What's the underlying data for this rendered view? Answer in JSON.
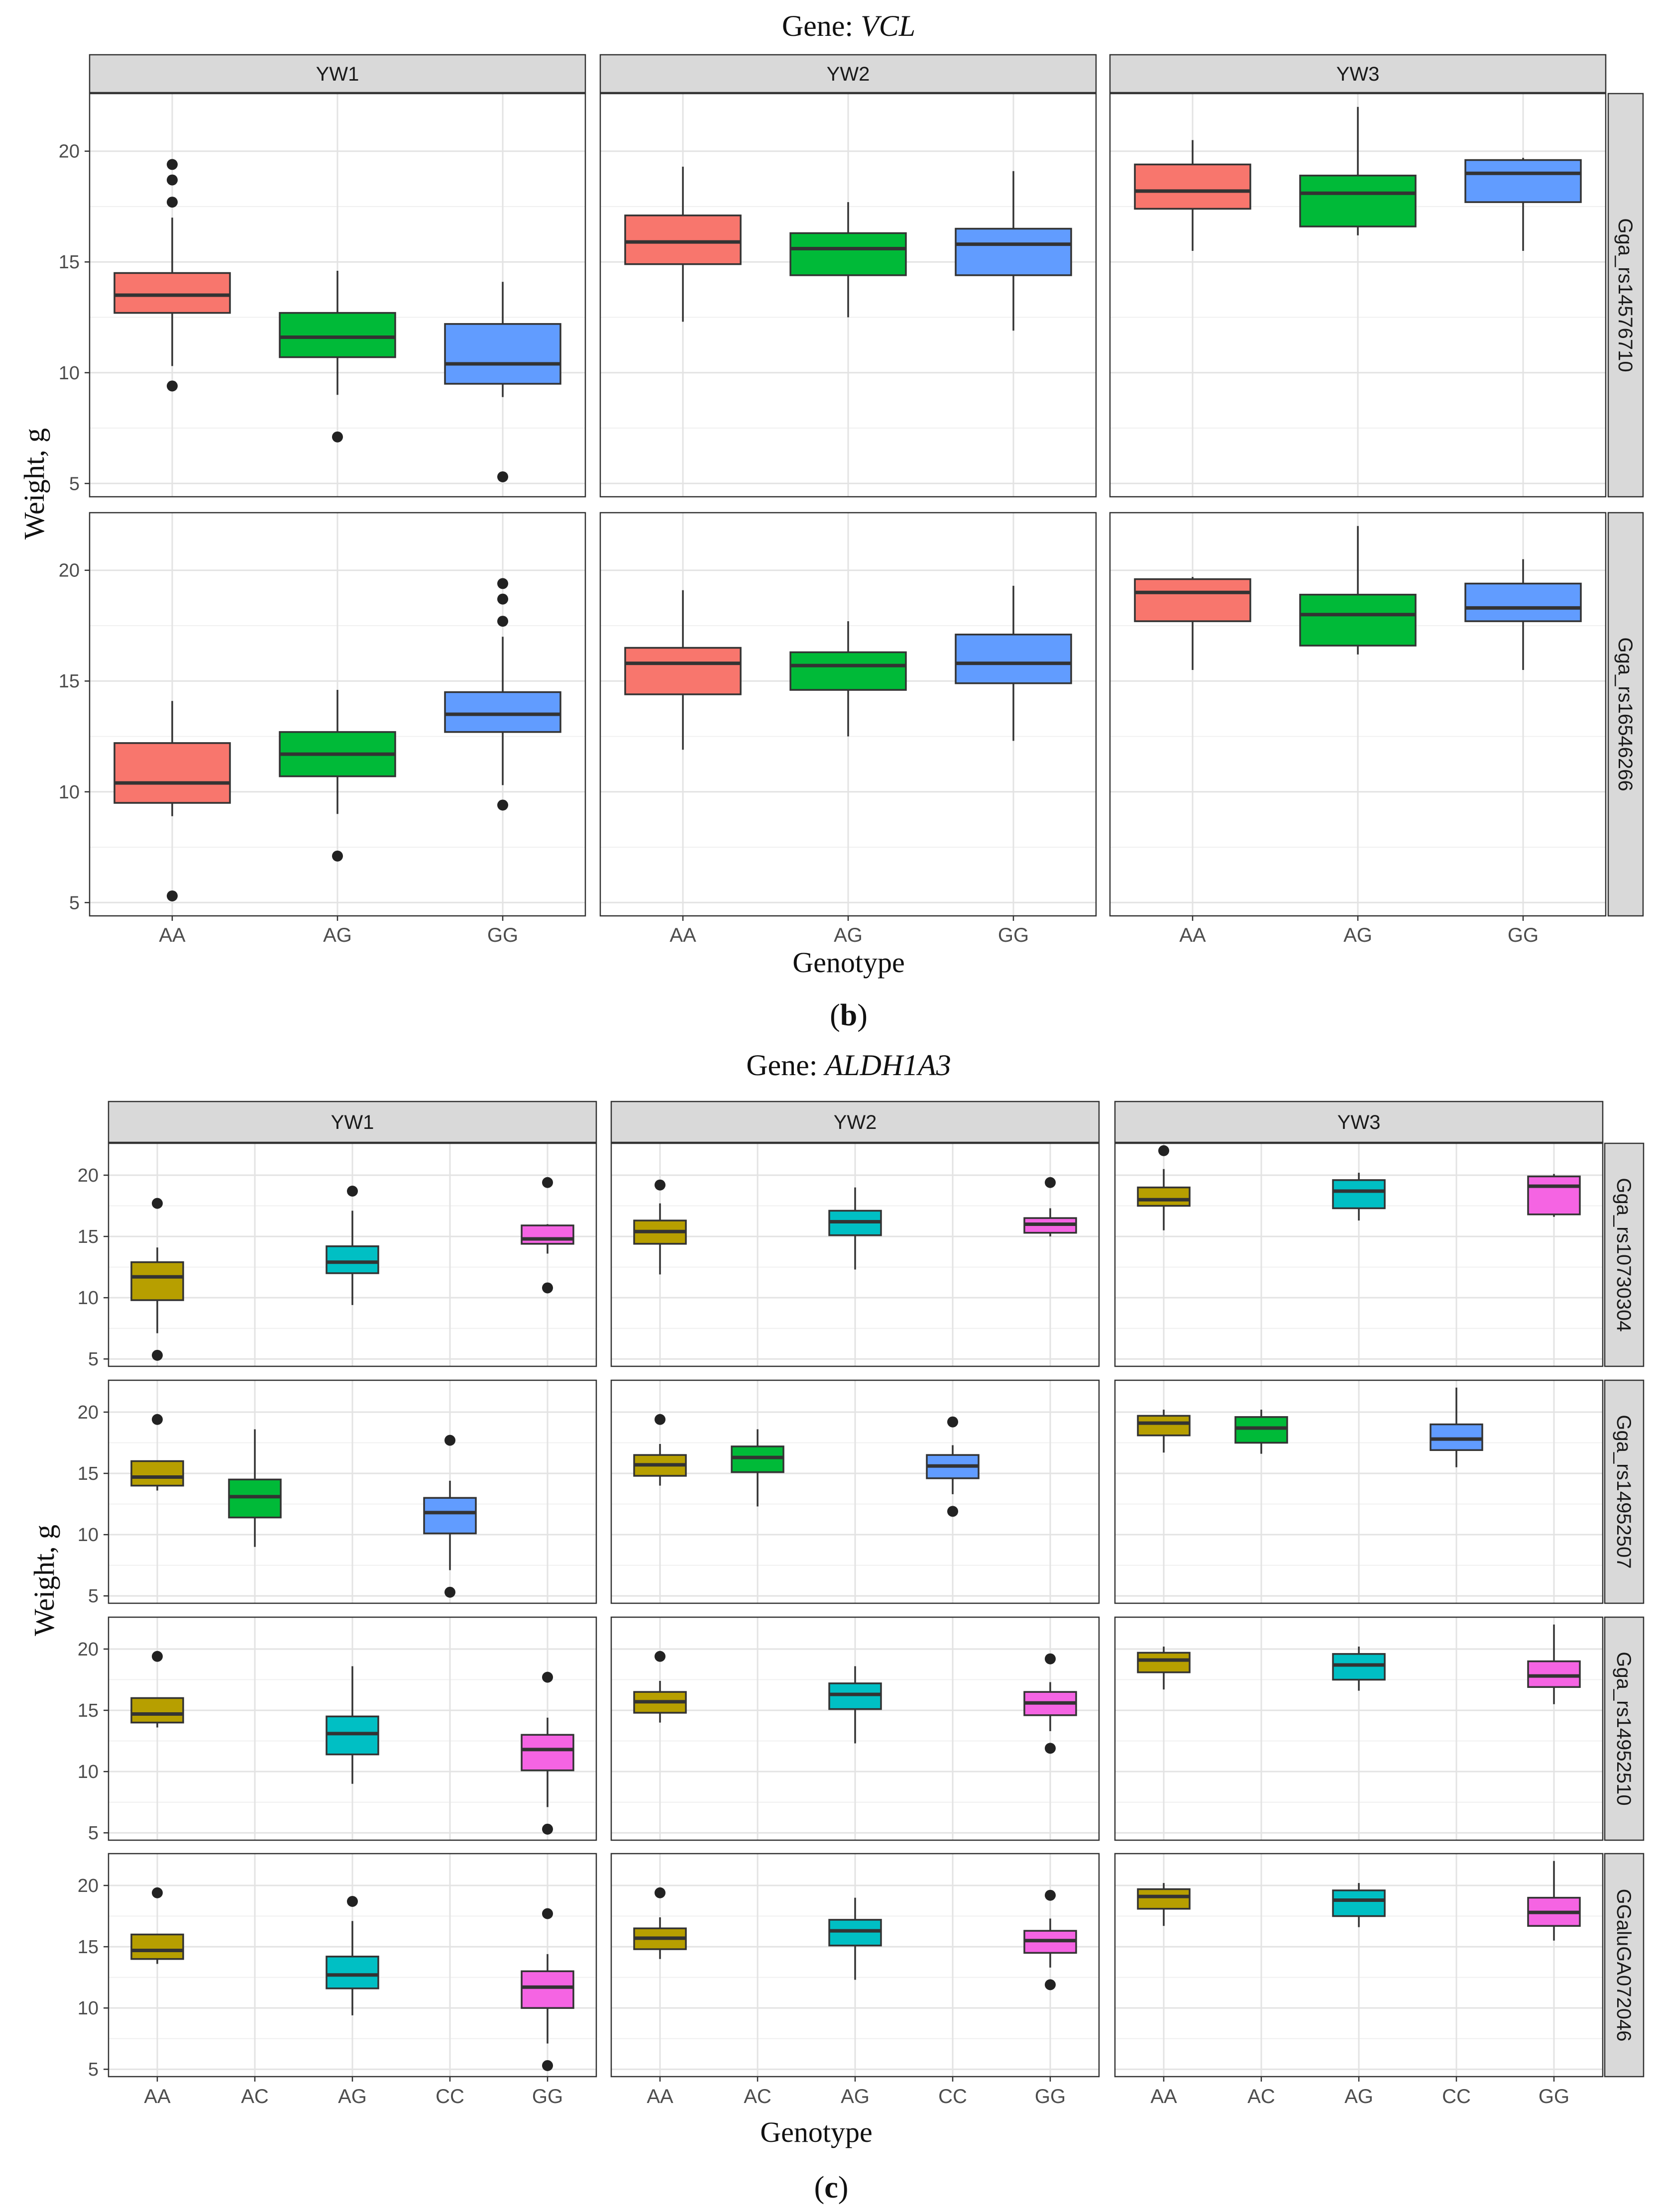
{
  "chart_data": [
    {
      "type": "boxplot",
      "title_prefix": "Gene: ",
      "gene": "VCL",
      "panel_label_open": "(",
      "panel_label_letter": "b",
      "panel_label_close": ")",
      "xlabel": "Genotype",
      "ylabel": "Weight, g",
      "ylim": [
        4.4,
        22.6
      ],
      "yticks": [
        5,
        10,
        15,
        20
      ],
      "columns": [
        "YW1",
        "YW2",
        "YW3"
      ],
      "rows": [
        "Gga_rs14576710",
        "Gga_rs16546266"
      ],
      "categories": [
        "AA",
        "AG",
        "GG"
      ],
      "colors": {
        "AA": "#F8766D",
        "AG": "#00BA38",
        "GG": "#619CFF"
      },
      "boxes": [
        [
          [
            {
              "cat": "AA",
              "min": 10.3,
              "q1": 12.7,
              "median": 13.5,
              "q3": 14.5,
              "max": 17.0,
              "outliers": [
                9.4,
                17.7,
                18.7,
                19.4
              ]
            },
            {
              "cat": "AG",
              "min": 9.0,
              "q1": 10.7,
              "median": 11.6,
              "q3": 12.7,
              "max": 14.6,
              "outliers": [
                7.1
              ]
            },
            {
              "cat": "GG",
              "min": 8.9,
              "q1": 9.5,
              "median": 10.4,
              "q3": 12.2,
              "max": 14.1,
              "outliers": [
                5.3
              ]
            }
          ],
          [
            {
              "cat": "AA",
              "min": 12.3,
              "q1": 14.9,
              "median": 15.9,
              "q3": 17.1,
              "max": 19.3,
              "outliers": []
            },
            {
              "cat": "AG",
              "min": 12.5,
              "q1": 14.4,
              "median": 15.6,
              "q3": 16.3,
              "max": 17.7,
              "outliers": []
            },
            {
              "cat": "GG",
              "min": 11.9,
              "q1": 14.4,
              "median": 15.8,
              "q3": 16.5,
              "max": 19.1,
              "outliers": []
            }
          ],
          [
            {
              "cat": "AA",
              "min": 15.5,
              "q1": 17.4,
              "median": 18.2,
              "q3": 19.4,
              "max": 20.5,
              "outliers": []
            },
            {
              "cat": "AG",
              "min": 16.2,
              "q1": 16.6,
              "median": 18.1,
              "q3": 18.9,
              "max": 22.0,
              "outliers": []
            },
            {
              "cat": "GG",
              "min": 15.5,
              "q1": 17.7,
              "median": 19.0,
              "q3": 19.6,
              "max": 19.7,
              "outliers": []
            }
          ]
        ],
        [
          [
            {
              "cat": "AA",
              "min": 8.9,
              "q1": 9.5,
              "median": 10.4,
              "q3": 12.2,
              "max": 14.1,
              "outliers": [
                5.3
              ]
            },
            {
              "cat": "AG",
              "min": 9.0,
              "q1": 10.7,
              "median": 11.7,
              "q3": 12.7,
              "max": 14.6,
              "outliers": [
                7.1
              ]
            },
            {
              "cat": "GG",
              "min": 10.3,
              "q1": 12.7,
              "median": 13.5,
              "q3": 14.5,
              "max": 17.0,
              "outliers": [
                9.4,
                17.7,
                18.7,
                19.4
              ]
            }
          ],
          [
            {
              "cat": "AA",
              "min": 11.9,
              "q1": 14.4,
              "median": 15.8,
              "q3": 16.5,
              "max": 19.1,
              "outliers": []
            },
            {
              "cat": "AG",
              "min": 12.5,
              "q1": 14.6,
              "median": 15.7,
              "q3": 16.3,
              "max": 17.7,
              "outliers": []
            },
            {
              "cat": "GG",
              "min": 12.3,
              "q1": 14.9,
              "median": 15.8,
              "q3": 17.1,
              "max": 19.3,
              "outliers": []
            }
          ],
          [
            {
              "cat": "AA",
              "min": 15.5,
              "q1": 17.7,
              "median": 19.0,
              "q3": 19.6,
              "max": 19.7,
              "outliers": []
            },
            {
              "cat": "AG",
              "min": 16.2,
              "q1": 16.6,
              "median": 18.0,
              "q3": 18.9,
              "max": 22.0,
              "outliers": []
            },
            {
              "cat": "GG",
              "min": 15.5,
              "q1": 17.7,
              "median": 18.3,
              "q3": 19.4,
              "max": 20.5,
              "outliers": []
            }
          ]
        ]
      ]
    },
    {
      "type": "boxplot",
      "title_prefix": "Gene: ",
      "gene": "ALDH1A3",
      "panel_label_open": "(",
      "panel_label_letter": "c",
      "panel_label_close": ")",
      "xlabel": "Genotype",
      "ylabel": "Weight, g",
      "ylim": [
        4.4,
        22.6
      ],
      "yticks": [
        5,
        10,
        15,
        20
      ],
      "columns": [
        "YW1",
        "YW2",
        "YW3"
      ],
      "rows": [
        "Gga_rs10730304",
        "Gga_rs14952507",
        "Gga_rs14952510",
        "GGaluGA072046"
      ],
      "categories": [
        "AA",
        "AC",
        "AG",
        "CC",
        "GG"
      ],
      "colors": {
        "AA": "#B79F00",
        "AC": "#00BA38",
        "AG": "#00BFC4",
        "CC": "#619CFF",
        "GG": "#F564E3"
      },
      "boxes": [
        [
          [
            {
              "cat": "AA",
              "min": 7.1,
              "q1": 9.8,
              "median": 11.7,
              "q3": 12.9,
              "max": 14.1,
              "outliers": [
                5.3,
                17.7
              ]
            },
            {
              "cat": "AG",
              "min": 9.4,
              "q1": 12.0,
              "median": 12.9,
              "q3": 14.2,
              "max": 17.1,
              "outliers": [
                18.7
              ]
            },
            {
              "cat": "GG",
              "min": 13.6,
              "q1": 14.4,
              "median": 14.8,
              "q3": 15.9,
              "max": 16.0,
              "outliers": [
                10.8,
                19.4
              ]
            }
          ],
          [
            {
              "cat": "AA",
              "min": 11.9,
              "q1": 14.4,
              "median": 15.4,
              "q3": 16.3,
              "max": 17.7,
              "outliers": [
                19.2
              ]
            },
            {
              "cat": "AG",
              "min": 12.3,
              "q1": 15.1,
              "median": 16.2,
              "q3": 17.1,
              "max": 19.0,
              "outliers": []
            },
            {
              "cat": "GG",
              "min": 15.0,
              "q1": 15.3,
              "median": 16.0,
              "q3": 16.5,
              "max": 17.3,
              "outliers": [
                19.4
              ]
            }
          ],
          [
            {
              "cat": "AA",
              "min": 15.5,
              "q1": 17.5,
              "median": 18.0,
              "q3": 19.0,
              "max": 20.5,
              "outliers": [
                22.0
              ]
            },
            {
              "cat": "AG",
              "min": 16.3,
              "q1": 17.3,
              "median": 18.7,
              "q3": 19.6,
              "max": 20.2,
              "outliers": []
            },
            {
              "cat": "GG",
              "min": 16.6,
              "q1": 16.8,
              "median": 19.1,
              "q3": 19.9,
              "max": 20.1,
              "outliers": []
            }
          ]
        ],
        [
          [
            {
              "cat": "AA",
              "min": 13.6,
              "q1": 14.0,
              "median": 14.7,
              "q3": 16.0,
              "max": 16.0,
              "outliers": [
                19.4
              ]
            },
            {
              "cat": "AC",
              "min": 9.0,
              "q1": 11.4,
              "median": 13.1,
              "q3": 14.5,
              "max": 18.6,
              "outliers": []
            },
            {
              "cat": "CC",
              "min": 7.1,
              "q1": 10.1,
              "median": 11.8,
              "q3": 13.0,
              "max": 14.4,
              "outliers": [
                5.3,
                17.7
              ]
            }
          ],
          [
            {
              "cat": "AA",
              "min": 14.0,
              "q1": 14.8,
              "median": 15.7,
              "q3": 16.5,
              "max": 17.4,
              "outliers": [
                19.4
              ]
            },
            {
              "cat": "AC",
              "min": 12.3,
              "q1": 15.1,
              "median": 16.3,
              "q3": 17.2,
              "max": 18.6,
              "outliers": []
            },
            {
              "cat": "CC",
              "min": 13.3,
              "q1": 14.6,
              "median": 15.6,
              "q3": 16.5,
              "max": 17.3,
              "outliers": [
                11.9,
                19.2
              ]
            }
          ],
          [
            {
              "cat": "AA",
              "min": 16.7,
              "q1": 18.1,
              "median": 19.1,
              "q3": 19.7,
              "max": 20.2,
              "outliers": []
            },
            {
              "cat": "AC",
              "min": 16.6,
              "q1": 17.5,
              "median": 18.7,
              "q3": 19.6,
              "max": 20.2,
              "outliers": []
            },
            {
              "cat": "CC",
              "min": 15.5,
              "q1": 16.9,
              "median": 17.8,
              "q3": 19.0,
              "max": 22.0,
              "outliers": []
            }
          ]
        ],
        [
          [
            {
              "cat": "AA",
              "min": 13.6,
              "q1": 14.0,
              "median": 14.7,
              "q3": 16.0,
              "max": 16.0,
              "outliers": [
                19.4
              ]
            },
            {
              "cat": "AG",
              "min": 9.0,
              "q1": 11.4,
              "median": 13.1,
              "q3": 14.5,
              "max": 18.6,
              "outliers": []
            },
            {
              "cat": "GG",
              "min": 7.1,
              "q1": 10.1,
              "median": 11.8,
              "q3": 13.0,
              "max": 14.4,
              "outliers": [
                5.3,
                17.7
              ]
            }
          ],
          [
            {
              "cat": "AA",
              "min": 14.0,
              "q1": 14.8,
              "median": 15.7,
              "q3": 16.5,
              "max": 17.4,
              "outliers": [
                19.4
              ]
            },
            {
              "cat": "AG",
              "min": 12.3,
              "q1": 15.1,
              "median": 16.3,
              "q3": 17.2,
              "max": 18.6,
              "outliers": []
            },
            {
              "cat": "GG",
              "min": 13.3,
              "q1": 14.6,
              "median": 15.6,
              "q3": 16.5,
              "max": 17.3,
              "outliers": [
                11.9,
                19.2
              ]
            }
          ],
          [
            {
              "cat": "AA",
              "min": 16.7,
              "q1": 18.1,
              "median": 19.1,
              "q3": 19.7,
              "max": 20.2,
              "outliers": []
            },
            {
              "cat": "AG",
              "min": 16.6,
              "q1": 17.5,
              "median": 18.7,
              "q3": 19.6,
              "max": 20.2,
              "outliers": []
            },
            {
              "cat": "GG",
              "min": 15.5,
              "q1": 16.9,
              "median": 17.8,
              "q3": 19.0,
              "max": 22.0,
              "outliers": []
            }
          ]
        ],
        [
          [
            {
              "cat": "AA",
              "min": 13.6,
              "q1": 14.0,
              "median": 14.7,
              "q3": 16.0,
              "max": 16.0,
              "outliers": [
                19.4
              ]
            },
            {
              "cat": "AG",
              "min": 9.4,
              "q1": 11.6,
              "median": 12.7,
              "q3": 14.2,
              "max": 17.1,
              "outliers": [
                18.7
              ]
            },
            {
              "cat": "GG",
              "min": 7.1,
              "q1": 10.0,
              "median": 11.7,
              "q3": 13.0,
              "max": 14.4,
              "outliers": [
                5.3,
                17.7
              ]
            }
          ],
          [
            {
              "cat": "AA",
              "min": 14.0,
              "q1": 14.8,
              "median": 15.7,
              "q3": 16.5,
              "max": 17.4,
              "outliers": [
                19.4
              ]
            },
            {
              "cat": "AG",
              "min": 12.3,
              "q1": 15.1,
              "median": 16.3,
              "q3": 17.2,
              "max": 19.0,
              "outliers": []
            },
            {
              "cat": "GG",
              "min": 13.3,
              "q1": 14.5,
              "median": 15.5,
              "q3": 16.3,
              "max": 17.3,
              "outliers": [
                11.9,
                19.2
              ]
            }
          ],
          [
            {
              "cat": "AA",
              "min": 16.7,
              "q1": 18.1,
              "median": 19.1,
              "q3": 19.7,
              "max": 20.2,
              "outliers": []
            },
            {
              "cat": "AG",
              "min": 16.6,
              "q1": 17.5,
              "median": 18.8,
              "q3": 19.6,
              "max": 20.2,
              "outliers": []
            },
            {
              "cat": "GG",
              "min": 15.5,
              "q1": 16.7,
              "median": 17.8,
              "q3": 19.0,
              "max": 22.0,
              "outliers": []
            }
          ]
        ]
      ]
    }
  ]
}
